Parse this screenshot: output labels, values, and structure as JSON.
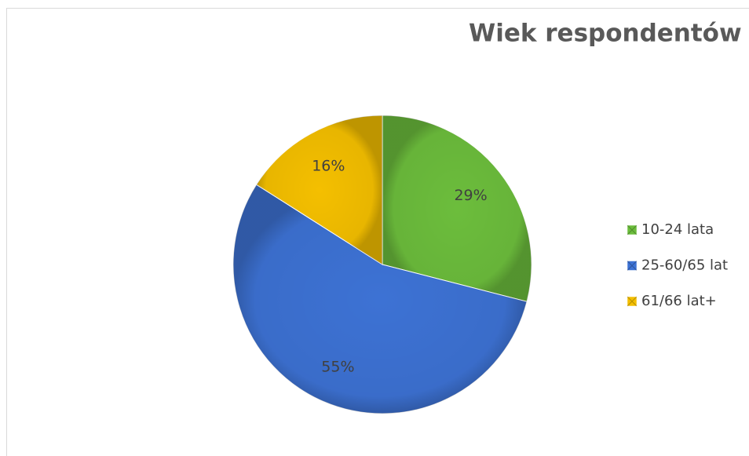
{
  "chart_data": {
    "type": "pie",
    "title": "Wiek respondentów",
    "categories": [
      "10-24 lata",
      "25-60/65 lat",
      "61/66 lat+"
    ],
    "values": [
      29,
      55,
      16
    ],
    "value_labels": [
      "29%",
      "55%",
      "16%"
    ],
    "colors": [
      "#6cbd3c",
      "#3d72d4",
      "#f4bf00"
    ],
    "legend": "right"
  }
}
